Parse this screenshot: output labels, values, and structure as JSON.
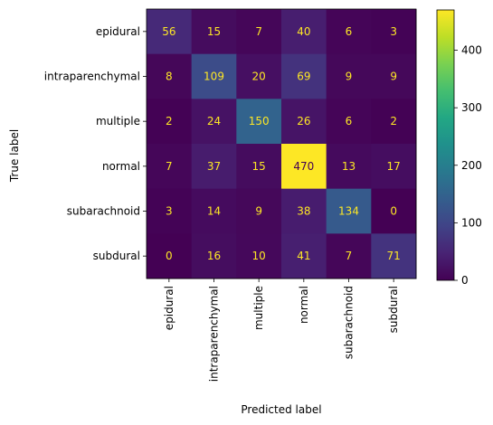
{
  "chart_data": {
    "type": "heatmap",
    "title": "",
    "xlabel": "Predicted label",
    "ylabel": "True label",
    "categories": [
      "epidural",
      "intraparenchymal",
      "multiple",
      "normal",
      "subarachnoid",
      "subdural"
    ],
    "matrix": [
      [
        56,
        15,
        7,
        40,
        6,
        3
      ],
      [
        8,
        109,
        20,
        69,
        9,
        9
      ],
      [
        2,
        24,
        150,
        26,
        6,
        2
      ],
      [
        7,
        37,
        15,
        470,
        13,
        17
      ],
      [
        3,
        14,
        9,
        38,
        134,
        0
      ],
      [
        0,
        16,
        10,
        41,
        7,
        71
      ]
    ],
    "colormap": "viridis",
    "vmin": 0,
    "vmax": 470,
    "colorbar_ticks": [
      0,
      100,
      200,
      300,
      400
    ],
    "text_color_on_dark": "#fde725",
    "text_color_on_light": "#440154"
  }
}
